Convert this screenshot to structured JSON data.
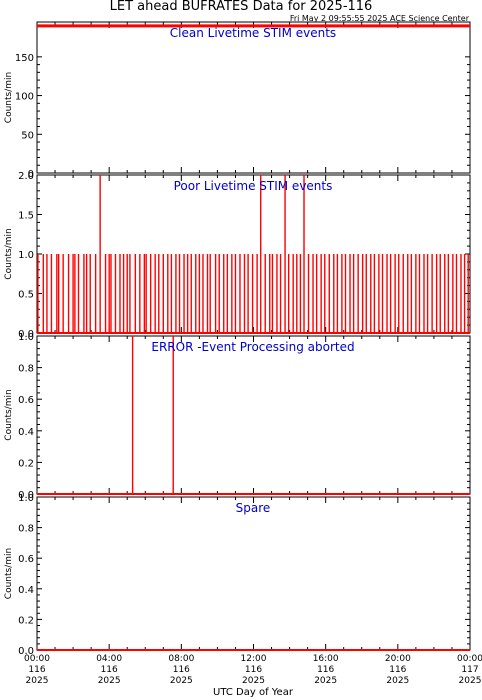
{
  "title": "LET ahead BUFRATES Data for 2025-116",
  "timestamp": "Fri May  2 09:55:55 2025 ACE Science Center",
  "xlabel": "UTC Day of Year",
  "x_ticks": [
    {
      "time": "00:00",
      "doy": "116",
      "year": "2025"
    },
    {
      "time": "04:00",
      "doy": "116",
      "year": "2025"
    },
    {
      "time": "08:00",
      "doy": "116",
      "year": "2025"
    },
    {
      "time": "12:00",
      "doy": "116",
      "year": "2025"
    },
    {
      "time": "16:00",
      "doy": "116",
      "year": "2025"
    },
    {
      "time": "20:00",
      "doy": "116",
      "year": "2025"
    },
    {
      "time": "00:00",
      "doy": "117",
      "year": "2025"
    }
  ],
  "colors": {
    "data": "#ff0000",
    "panel_title": "#0000cc",
    "axes": "#000000"
  },
  "chart_data": [
    {
      "type": "line",
      "title": "Clean Livetime STIM events",
      "ylabel": "Counts/min",
      "xlim_hours": [
        0,
        24
      ],
      "ylim": [
        0,
        195
      ],
      "yticks": [
        0,
        50,
        100,
        150
      ],
      "ytick_labels": [
        "0",
        "50",
        "100",
        "150"
      ],
      "baseline": 190,
      "spikes": []
    },
    {
      "type": "line",
      "title": "Poor Livetime STIM events",
      "ylabel": "Counts/min",
      "xlim_hours": [
        0,
        24
      ],
      "ylim": [
        0,
        2
      ],
      "yticks": [
        0,
        0.5,
        1,
        1.5,
        2
      ],
      "ytick_labels": [
        "0.0",
        "0.5",
        "1.0",
        "1.5",
        "2.0"
      ],
      "baseline": 0,
      "spikes": [
        {
          "x": 0.05,
          "y": 1
        },
        {
          "x": 0.35,
          "y": 1
        },
        {
          "x": 0.55,
          "y": 1
        },
        {
          "x": 0.8,
          "y": 1
        },
        {
          "x": 1.1,
          "y": 1
        },
        {
          "x": 1.2,
          "y": 1
        },
        {
          "x": 1.45,
          "y": 1
        },
        {
          "x": 1.75,
          "y": 1
        },
        {
          "x": 2.0,
          "y": 1
        },
        {
          "x": 2.1,
          "y": 1
        },
        {
          "x": 2.3,
          "y": 1
        },
        {
          "x": 2.6,
          "y": 1
        },
        {
          "x": 2.75,
          "y": 1
        },
        {
          "x": 2.95,
          "y": 1
        },
        {
          "x": 3.25,
          "y": 1
        },
        {
          "x": 3.5,
          "y": 2
        },
        {
          "x": 3.8,
          "y": 1
        },
        {
          "x": 4.0,
          "y": 1
        },
        {
          "x": 4.1,
          "y": 1
        },
        {
          "x": 4.35,
          "y": 1
        },
        {
          "x": 4.6,
          "y": 1
        },
        {
          "x": 4.8,
          "y": 1
        },
        {
          "x": 5.0,
          "y": 1
        },
        {
          "x": 5.15,
          "y": 1
        },
        {
          "x": 5.45,
          "y": 1
        },
        {
          "x": 5.7,
          "y": 1
        },
        {
          "x": 5.95,
          "y": 1
        },
        {
          "x": 6.05,
          "y": 1
        },
        {
          "x": 6.3,
          "y": 1
        },
        {
          "x": 6.55,
          "y": 1
        },
        {
          "x": 6.75,
          "y": 1
        },
        {
          "x": 7.0,
          "y": 1
        },
        {
          "x": 7.25,
          "y": 1
        },
        {
          "x": 7.45,
          "y": 1
        },
        {
          "x": 7.7,
          "y": 1
        },
        {
          "x": 7.9,
          "y": 1
        },
        {
          "x": 8.15,
          "y": 1
        },
        {
          "x": 8.35,
          "y": 1
        },
        {
          "x": 8.55,
          "y": 1
        },
        {
          "x": 8.8,
          "y": 1
        },
        {
          "x": 9.0,
          "y": 1
        },
        {
          "x": 9.2,
          "y": 1
        },
        {
          "x": 9.45,
          "y": 1
        },
        {
          "x": 9.6,
          "y": 1
        },
        {
          "x": 9.9,
          "y": 1
        },
        {
          "x": 10.1,
          "y": 1
        },
        {
          "x": 10.35,
          "y": 1
        },
        {
          "x": 10.55,
          "y": 1
        },
        {
          "x": 10.8,
          "y": 1
        },
        {
          "x": 11.0,
          "y": 1
        },
        {
          "x": 11.25,
          "y": 1
        },
        {
          "x": 11.5,
          "y": 1
        },
        {
          "x": 11.7,
          "y": 1
        },
        {
          "x": 11.95,
          "y": 1
        },
        {
          "x": 12.2,
          "y": 1
        },
        {
          "x": 12.4,
          "y": 2
        },
        {
          "x": 12.65,
          "y": 1
        },
        {
          "x": 12.9,
          "y": 1
        },
        {
          "x": 13.05,
          "y": 1
        },
        {
          "x": 13.3,
          "y": 1
        },
        {
          "x": 13.5,
          "y": 1
        },
        {
          "x": 13.75,
          "y": 2
        },
        {
          "x": 13.95,
          "y": 1
        },
        {
          "x": 14.2,
          "y": 1
        },
        {
          "x": 14.4,
          "y": 1
        },
        {
          "x": 14.6,
          "y": 1
        },
        {
          "x": 14.8,
          "y": 2
        },
        {
          "x": 15.05,
          "y": 1
        },
        {
          "x": 15.3,
          "y": 1
        },
        {
          "x": 15.5,
          "y": 1
        },
        {
          "x": 15.75,
          "y": 1
        },
        {
          "x": 15.95,
          "y": 1
        },
        {
          "x": 16.2,
          "y": 1
        },
        {
          "x": 16.45,
          "y": 1
        },
        {
          "x": 16.65,
          "y": 1
        },
        {
          "x": 16.9,
          "y": 1
        },
        {
          "x": 17.1,
          "y": 1
        },
        {
          "x": 17.35,
          "y": 1
        },
        {
          "x": 17.55,
          "y": 1
        },
        {
          "x": 17.8,
          "y": 1
        },
        {
          "x": 18.05,
          "y": 1
        },
        {
          "x": 18.25,
          "y": 1
        },
        {
          "x": 18.5,
          "y": 1
        },
        {
          "x": 18.7,
          "y": 1
        },
        {
          "x": 18.95,
          "y": 1
        },
        {
          "x": 19.15,
          "y": 1
        },
        {
          "x": 19.4,
          "y": 1
        },
        {
          "x": 19.6,
          "y": 1
        },
        {
          "x": 19.85,
          "y": 1
        },
        {
          "x": 20.05,
          "y": 1
        },
        {
          "x": 20.3,
          "y": 1
        },
        {
          "x": 20.55,
          "y": 1
        },
        {
          "x": 20.75,
          "y": 1
        },
        {
          "x": 21.0,
          "y": 1
        },
        {
          "x": 21.2,
          "y": 1
        },
        {
          "x": 21.45,
          "y": 1
        },
        {
          "x": 21.65,
          "y": 1
        },
        {
          "x": 21.9,
          "y": 1
        },
        {
          "x": 22.15,
          "y": 1
        },
        {
          "x": 22.35,
          "y": 1
        },
        {
          "x": 22.6,
          "y": 1
        },
        {
          "x": 22.8,
          "y": 1
        },
        {
          "x": 23.05,
          "y": 1
        },
        {
          "x": 23.25,
          "y": 1
        },
        {
          "x": 23.5,
          "y": 1
        },
        {
          "x": 23.7,
          "y": 1
        },
        {
          "x": 23.9,
          "y": 1
        }
      ]
    },
    {
      "type": "line",
      "title": "ERROR -Event Processing aborted",
      "ylabel": "Counts/min",
      "xlim_hours": [
        0,
        24
      ],
      "ylim": [
        0,
        1
      ],
      "yticks": [
        0,
        0.2,
        0.4,
        0.6,
        0.8,
        1
      ],
      "ytick_labels": [
        "0.0",
        "0.2",
        "0.4",
        "0.6",
        "0.8",
        "1.0"
      ],
      "baseline": 0,
      "spikes": [
        {
          "x": 5.3,
          "y": 1
        },
        {
          "x": 7.55,
          "y": 1
        }
      ]
    },
    {
      "type": "line",
      "title": "Spare",
      "ylabel": "Counts/min",
      "xlim_hours": [
        0,
        24
      ],
      "ylim": [
        0,
        1
      ],
      "yticks": [
        0,
        0.2,
        0.4,
        0.6,
        0.8,
        1
      ],
      "ytick_labels": [
        "0.0",
        "0.2",
        "0.4",
        "0.6",
        "0.8",
        "1.0"
      ],
      "baseline": 0,
      "spikes": []
    }
  ]
}
